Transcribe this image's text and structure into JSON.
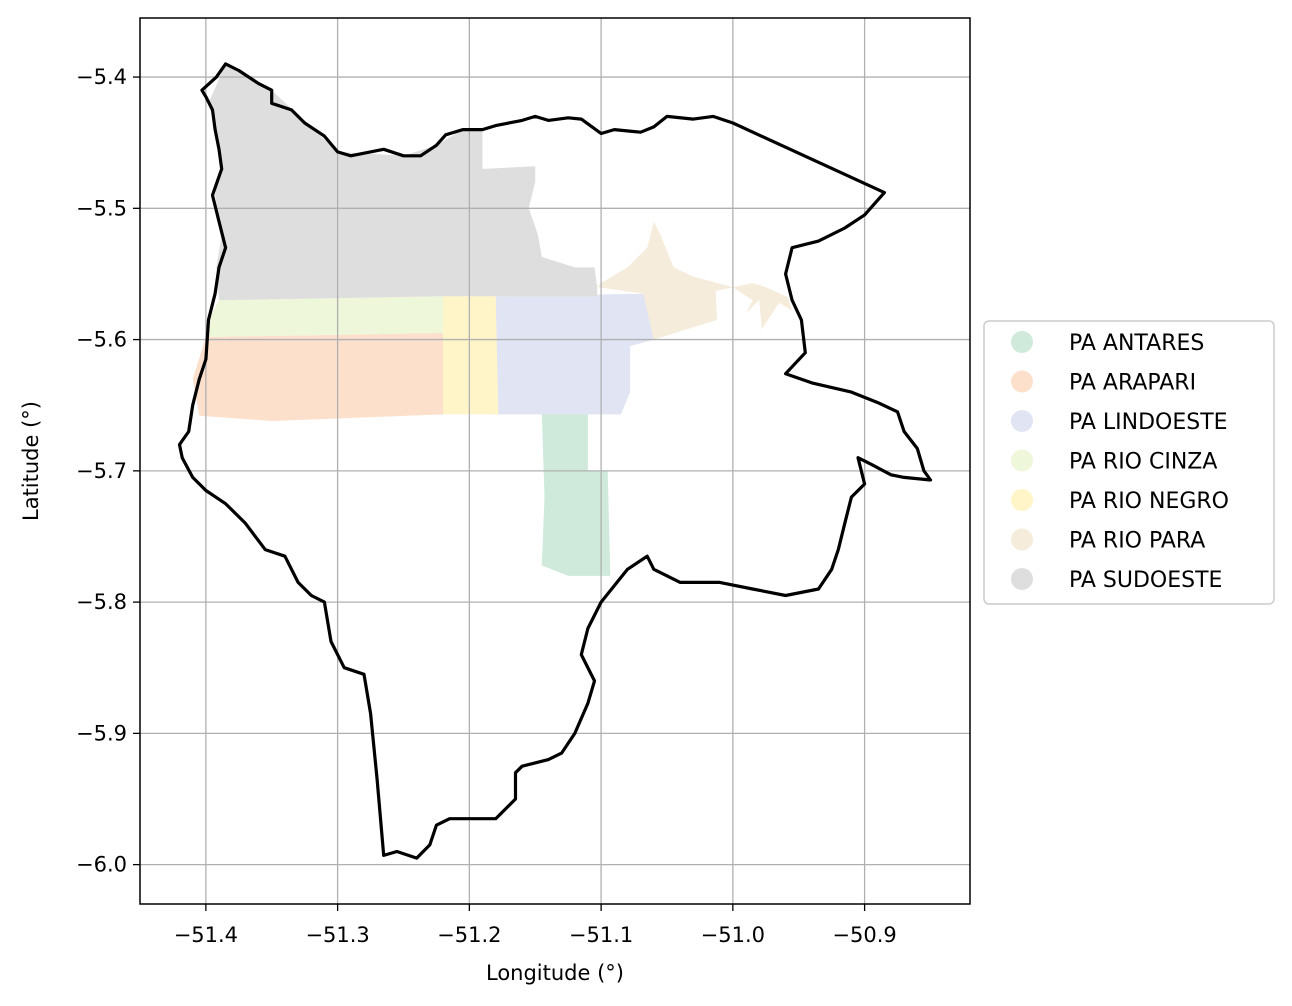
{
  "chart_data": {
    "type": "map",
    "title": "",
    "xlabel": "Longitude (°)",
    "ylabel": "Latitude (°)",
    "xlim": [
      -51.45,
      -50.82
    ],
    "ylim": [
      -6.03,
      -5.355
    ],
    "xticks": [
      -51.4,
      -51.3,
      -51.2,
      -51.1,
      -51.0,
      -50.9
    ],
    "yticks": [
      -5.4,
      -5.5,
      -5.6,
      -5.7,
      -5.8,
      -5.9,
      -6.0
    ],
    "xtick_labels": [
      "−51.4",
      "−51.3",
      "−51.2",
      "−51.1",
      "−51.0",
      "−50.9"
    ],
    "ytick_labels": [
      "−5.4",
      "−5.5",
      "−5.6",
      "−5.7",
      "−5.8",
      "−5.9",
      "−6.0"
    ],
    "grid": true,
    "legend_position": "right",
    "boundary": [
      [
        -51.403,
        -5.41
      ],
      [
        -51.392,
        -5.4
      ],
      [
        -51.385,
        -5.39
      ],
      [
        -51.375,
        -5.395
      ],
      [
        -51.36,
        -5.405
      ],
      [
        -51.35,
        -5.41
      ],
      [
        -51.35,
        -5.42
      ],
      [
        -51.335,
        -5.425
      ],
      [
        -51.325,
        -5.435
      ],
      [
        -51.31,
        -5.445
      ],
      [
        -51.3,
        -5.457
      ],
      [
        -51.29,
        -5.46
      ],
      [
        -51.265,
        -5.455
      ],
      [
        -51.25,
        -5.46
      ],
      [
        -51.237,
        -5.46
      ],
      [
        -51.225,
        -5.452
      ],
      [
        -51.218,
        -5.444
      ],
      [
        -51.205,
        -5.44
      ],
      [
        -51.19,
        -5.44
      ],
      [
        -51.18,
        -5.437
      ],
      [
        -51.16,
        -5.433
      ],
      [
        -51.15,
        -5.43
      ],
      [
        -51.14,
        -5.433
      ],
      [
        -51.125,
        -5.431
      ],
      [
        -51.115,
        -5.432
      ],
      [
        -51.1,
        -5.443
      ],
      [
        -51.09,
        -5.44
      ],
      [
        -51.07,
        -5.442
      ],
      [
        -51.06,
        -5.438
      ],
      [
        -51.05,
        -5.43
      ],
      [
        -51.03,
        -5.432
      ],
      [
        -51.015,
        -5.43
      ],
      [
        -51.0,
        -5.435
      ],
      [
        -50.885,
        -5.488
      ],
      [
        -50.9,
        -5.505
      ],
      [
        -50.915,
        -5.515
      ],
      [
        -50.935,
        -5.525
      ],
      [
        -50.955,
        -5.53
      ],
      [
        -50.96,
        -5.55
      ],
      [
        -50.955,
        -5.57
      ],
      [
        -50.948,
        -5.585
      ],
      [
        -50.945,
        -5.61
      ],
      [
        -50.96,
        -5.626
      ],
      [
        -50.94,
        -5.633
      ],
      [
        -50.91,
        -5.64
      ],
      [
        -50.89,
        -5.648
      ],
      [
        -50.875,
        -5.655
      ],
      [
        -50.87,
        -5.67
      ],
      [
        -50.86,
        -5.683
      ],
      [
        -50.855,
        -5.7
      ],
      [
        -50.85,
        -5.707
      ],
      [
        -50.87,
        -5.705
      ],
      [
        -50.88,
        -5.703
      ],
      [
        -50.895,
        -5.695
      ],
      [
        -50.905,
        -5.69
      ],
      [
        -50.9,
        -5.71
      ],
      [
        -50.91,
        -5.72
      ],
      [
        -50.915,
        -5.74
      ],
      [
        -50.92,
        -5.76
      ],
      [
        -50.925,
        -5.775
      ],
      [
        -50.935,
        -5.79
      ],
      [
        -50.96,
        -5.795
      ],
      [
        -50.985,
        -5.79
      ],
      [
        -51.01,
        -5.785
      ],
      [
        -51.04,
        -5.785
      ],
      [
        -51.06,
        -5.775
      ],
      [
        -51.065,
        -5.765
      ],
      [
        -51.08,
        -5.775
      ],
      [
        -51.1,
        -5.8
      ],
      [
        -51.11,
        -5.82
      ],
      [
        -51.115,
        -5.84
      ],
      [
        -51.105,
        -5.86
      ],
      [
        -51.11,
        -5.877
      ],
      [
        -51.12,
        -5.9
      ],
      [
        -51.13,
        -5.915
      ],
      [
        -51.14,
        -5.92
      ],
      [
        -51.16,
        -5.925
      ],
      [
        -51.165,
        -5.93
      ],
      [
        -51.165,
        -5.95
      ],
      [
        -51.18,
        -5.965
      ],
      [
        -51.2,
        -5.965
      ],
      [
        -51.215,
        -5.965
      ],
      [
        -51.225,
        -5.97
      ],
      [
        -51.23,
        -5.985
      ],
      [
        -51.24,
        -5.995
      ],
      [
        -51.255,
        -5.99
      ],
      [
        -51.265,
        -5.993
      ],
      [
        -51.27,
        -5.935
      ],
      [
        -51.275,
        -5.885
      ],
      [
        -51.28,
        -5.855
      ],
      [
        -51.295,
        -5.85
      ],
      [
        -51.305,
        -5.83
      ],
      [
        -51.31,
        -5.8
      ],
      [
        -51.32,
        -5.795
      ],
      [
        -51.33,
        -5.785
      ],
      [
        -51.34,
        -5.765
      ],
      [
        -51.355,
        -5.76
      ],
      [
        -51.37,
        -5.74
      ],
      [
        -51.385,
        -5.725
      ],
      [
        -51.4,
        -5.715
      ],
      [
        -51.41,
        -5.705
      ],
      [
        -51.418,
        -5.69
      ],
      [
        -51.42,
        -5.68
      ],
      [
        -51.413,
        -5.67
      ],
      [
        -51.41,
        -5.65
      ],
      [
        -51.405,
        -5.63
      ],
      [
        -51.4,
        -5.615
      ],
      [
        -51.398,
        -5.585
      ],
      [
        -51.393,
        -5.565
      ],
      [
        -51.39,
        -5.545
      ],
      [
        -51.385,
        -5.53
      ],
      [
        -51.39,
        -5.51
      ],
      [
        -51.395,
        -5.49
      ],
      [
        -51.388,
        -5.47
      ],
      [
        -51.39,
        -5.455
      ],
      [
        -51.393,
        -5.44
      ],
      [
        -51.395,
        -5.425
      ],
      [
        -51.4,
        -5.415
      ],
      [
        -51.403,
        -5.41
      ]
    ],
    "series": [
      {
        "name": "PA ANTARES",
        "color": "#cfeadb",
        "polygons": [
          [
            [
              -51.145,
              -5.655
            ],
            [
              -51.11,
              -5.655
            ],
            [
              -51.11,
              -5.7
            ],
            [
              -51.095,
              -5.7
            ],
            [
              -51.093,
              -5.78
            ],
            [
              -51.125,
              -5.78
            ],
            [
              -51.145,
              -5.772
            ],
            [
              -51.143,
              -5.72
            ]
          ]
        ]
      },
      {
        "name": "PA ARAPARI",
        "color": "#fde0cc",
        "polygons": [
          [
            [
              -51.4,
              -5.598
            ],
            [
              -51.22,
              -5.595
            ],
            [
              -51.22,
              -5.657
            ],
            [
              -51.35,
              -5.662
            ],
            [
              -51.405,
              -5.658
            ],
            [
              -51.41,
              -5.63
            ]
          ]
        ]
      },
      {
        "name": "PA LINDOESTE",
        "color": "#e0e4f3",
        "polygons": [
          [
            [
              -51.18,
              -5.567
            ],
            [
              -51.062,
              -5.565
            ],
            [
              -51.06,
              -5.6
            ],
            [
              -51.078,
              -5.605
            ],
            [
              -51.078,
              -5.64
            ],
            [
              -51.085,
              -5.657
            ],
            [
              -51.18,
              -5.657
            ]
          ]
        ]
      },
      {
        "name": "PA RIO CINZA",
        "color": "#eef7da",
        "polygons": [
          [
            [
              -51.39,
              -5.57
            ],
            [
              -51.22,
              -5.567
            ],
            [
              -51.22,
              -5.595
            ],
            [
              -51.4,
              -5.598
            ],
            [
              -51.398,
              -5.585
            ]
          ]
        ]
      },
      {
        "name": "PA RIO NEGRO",
        "color": "#fff5c8",
        "polygons": [
          [
            [
              -51.22,
              -5.567
            ],
            [
              -51.18,
              -5.567
            ],
            [
              -51.178,
              -5.657
            ],
            [
              -51.22,
              -5.657
            ]
          ]
        ]
      },
      {
        "name": "PA RIO PARA",
        "color": "#f6ecdc",
        "polygons": [
          [
            [
              -51.103,
              -5.56
            ],
            [
              -51.068,
              -5.565
            ],
            [
              -51.06,
              -5.6
            ],
            [
              -51.012,
              -5.585
            ],
            [
              -51.013,
              -5.563
            ],
            [
              -50.985,
              -5.557
            ],
            [
              -50.975,
              -5.56
            ],
            [
              -50.958,
              -5.568
            ],
            [
              -50.955,
              -5.578
            ],
            [
              -50.965,
              -5.572
            ],
            [
              -50.97,
              -5.58
            ],
            [
              -50.978,
              -5.592
            ],
            [
              -50.98,
              -5.57
            ],
            [
              -50.99,
              -5.58
            ],
            [
              -50.985,
              -5.57
            ],
            [
              -51.0,
              -5.56
            ],
            [
              -51.03,
              -5.552
            ],
            [
              -51.045,
              -5.545
            ],
            [
              -51.055,
              -5.52
            ],
            [
              -51.06,
              -5.51
            ],
            [
              -51.065,
              -5.53
            ],
            [
              -51.08,
              -5.545
            ],
            [
              -51.1,
              -5.557
            ]
          ]
        ]
      },
      {
        "name": "PA SUDOESTE",
        "color": "#dedede",
        "polygons": [
          [
            [
              -51.385,
              -5.39
            ],
            [
              -51.35,
              -5.41
            ],
            [
              -51.3,
              -5.457
            ],
            [
              -51.25,
              -5.46
            ],
            [
              -51.225,
              -5.452
            ],
            [
              -51.205,
              -5.44
            ],
            [
              -51.19,
              -5.44
            ],
            [
              -51.19,
              -5.47
            ],
            [
              -51.15,
              -5.468
            ],
            [
              -51.15,
              -5.48
            ],
            [
              -51.155,
              -5.5
            ],
            [
              -51.148,
              -5.52
            ],
            [
              -51.145,
              -5.537
            ],
            [
              -51.12,
              -5.545
            ],
            [
              -51.105,
              -5.545
            ],
            [
              -51.103,
              -5.56
            ],
            [
              -51.103,
              -5.567
            ],
            [
              -51.22,
              -5.567
            ],
            [
              -51.39,
              -5.57
            ],
            [
              -51.392,
              -5.545
            ],
            [
              -51.388,
              -5.52
            ],
            [
              -51.393,
              -5.49
            ],
            [
              -51.388,
              -5.465
            ],
            [
              -51.392,
              -5.44
            ],
            [
              -51.398,
              -5.42
            ]
          ]
        ]
      }
    ]
  }
}
